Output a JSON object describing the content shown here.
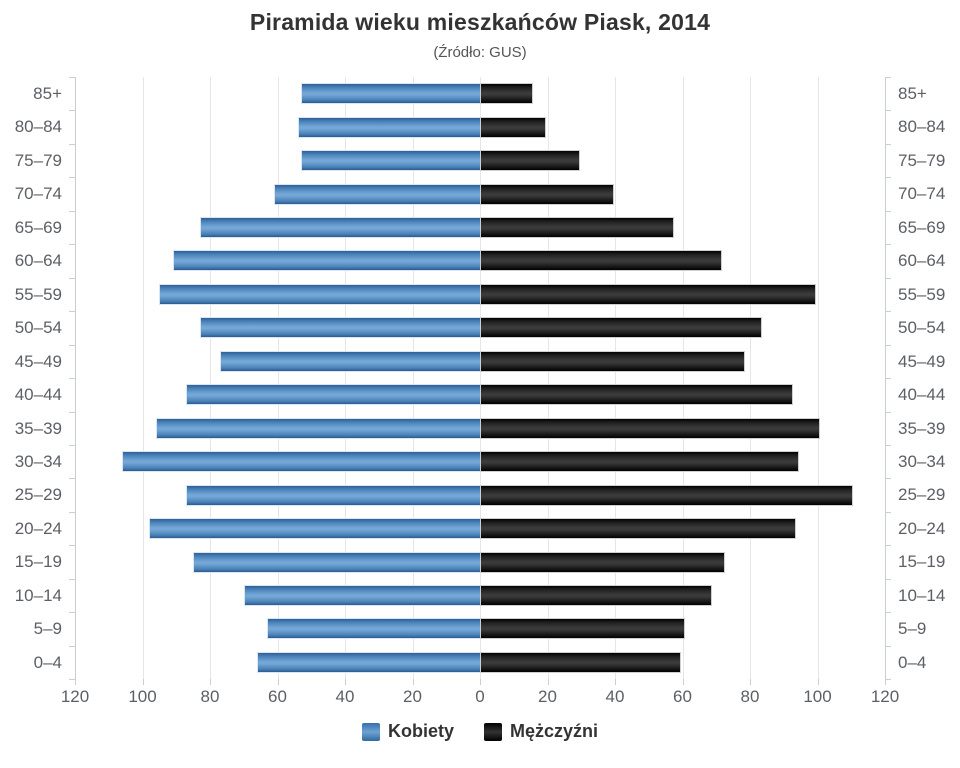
{
  "title": "Piramida wieku mieszkańców Piask, 2014",
  "subtitle": "(Źródło: GUS)",
  "legend": [
    {
      "label": "Kobiety",
      "color": "#4f87be"
    },
    {
      "label": "Mężczyźni",
      "color": "#1b1b1b"
    }
  ],
  "chart_data": {
    "type": "bar",
    "variant": "population-pyramid",
    "title": "Piramida wieku mieszkańców Piask, 2014",
    "subtitle": "(Źródło: GUS)",
    "xlabel": "",
    "ylabel": "",
    "grid": true,
    "legend_position": "bottom",
    "xlim_per_side": [
      0,
      120
    ],
    "x_tick_labels": [
      "120",
      "100",
      "80",
      "60",
      "40",
      "20",
      "0",
      "20",
      "40",
      "60",
      "80",
      "100",
      "120"
    ],
    "categories": [
      "85+",
      "80–84",
      "75–79",
      "70–74",
      "65–69",
      "60–64",
      "55–59",
      "50–54",
      "45–49",
      "40–44",
      "35–39",
      "30–34",
      "25–29",
      "20–24",
      "15–19",
      "10–14",
      "5–9",
      "0–4"
    ],
    "series": [
      {
        "name": "Kobiety",
        "side": "left",
        "color": "#4f87be",
        "values": [
          53,
          54,
          53,
          61,
          83,
          91,
          95,
          83,
          77,
          87,
          96,
          106,
          87,
          98,
          85,
          70,
          63,
          66
        ]
      },
      {
        "name": "Mężczyźni",
        "side": "right",
        "color": "#1b1b1b",
        "values": [
          15,
          19,
          29,
          39,
          57,
          71,
          99,
          83,
          78,
          92,
          100,
          94,
          110,
          93,
          72,
          68,
          60,
          59
        ]
      }
    ]
  }
}
